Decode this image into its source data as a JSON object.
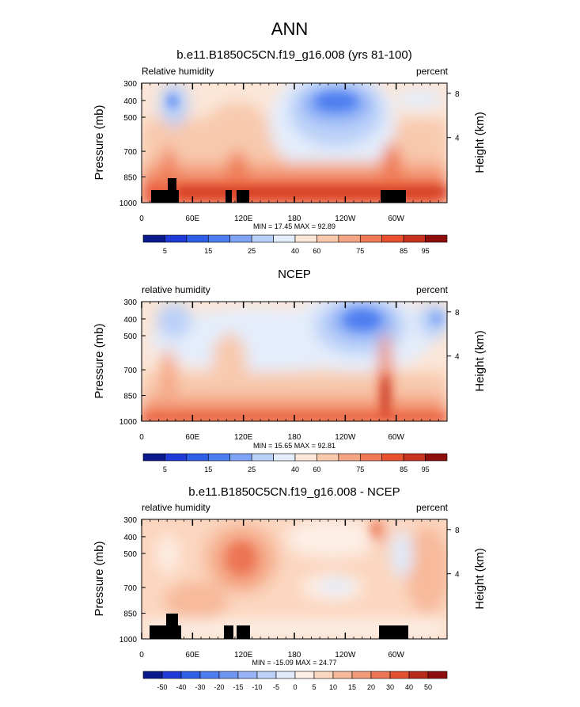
{
  "figure": {
    "title": "ANN",
    "colors": {
      "abs_palette": [
        "#0a1a8c",
        "#1f3ad6",
        "#2f5fe6",
        "#4d7df0",
        "#7fa4f5",
        "#b9d0f8",
        "#e4edfb",
        "#fbe6d8",
        "#f8c9ad",
        "#f4a583",
        "#ef7a55",
        "#e8502f",
        "#c8321e",
        "#8e0d0d"
      ],
      "diff_palette": [
        "#0a1a8c",
        "#1f3ad6",
        "#2f5fe6",
        "#4d7df0",
        "#6f95f3",
        "#96b4f6",
        "#bcd0f8",
        "#e0eafb",
        "#fdeee4",
        "#fbd6c0",
        "#f7b99a",
        "#f29a78",
        "#ec7555",
        "#e2502f",
        "#b8281b",
        "#8e0d0d"
      ]
    }
  },
  "chart_data": [
    {
      "type": "heatmap",
      "title": "b.e11.B1850C5CN.f19_g16.008 (yrs 81-100)",
      "left_label": "Relative humidity",
      "right_label": "percent",
      "ylabel": "Pressure (mb)",
      "y2label": "Height (km)",
      "y_ticks": [
        "300",
        "400",
        "500",
        "700",
        "850",
        "1000"
      ],
      "y2_ticks": [
        "8",
        "4"
      ],
      "x_ticks": [
        "0",
        "60E",
        "120E",
        "180",
        "120W",
        "60W"
      ],
      "stats": "MIN = 17.45  MAX = 92.89",
      "colorbar_labels": [
        "5",
        "15",
        "25",
        "40",
        "60",
        "75",
        "85",
        "95"
      ]
    },
    {
      "type": "heatmap",
      "title": "NCEP",
      "left_label": "relative humidity",
      "right_label": "percent",
      "ylabel": "Pressure (mb)",
      "y2label": "Height (km)",
      "y_ticks": [
        "300",
        "400",
        "500",
        "700",
        "850",
        "1000"
      ],
      "y2_ticks": [
        "8",
        "4"
      ],
      "x_ticks": [
        "0",
        "60E",
        "120E",
        "180",
        "120W",
        "60W"
      ],
      "stats": "MIN = 15.65  MAX = 92.81",
      "colorbar_labels": [
        "5",
        "15",
        "25",
        "40",
        "60",
        "75",
        "85",
        "95"
      ]
    },
    {
      "type": "heatmap",
      "title": "b.e11.B1850C5CN.f19_g16.008 - NCEP",
      "left_label": "relative humidity",
      "right_label": "percent",
      "ylabel": "Pressure (mb)",
      "y2label": "Height (km)",
      "y_ticks": [
        "300",
        "400",
        "500",
        "700",
        "850",
        "1000"
      ],
      "y2_ticks": [
        "8",
        "4"
      ],
      "x_ticks": [
        "0",
        "60E",
        "120E",
        "180",
        "120W",
        "60W"
      ],
      "stats": "MIN = -15.09  MAX = 24.77",
      "colorbar_labels": [
        "-50",
        "-40",
        "-30",
        "-20",
        "-15",
        "-10",
        "-5",
        "0",
        "5",
        "10",
        "15",
        "20",
        "30",
        "40",
        "50"
      ]
    }
  ]
}
